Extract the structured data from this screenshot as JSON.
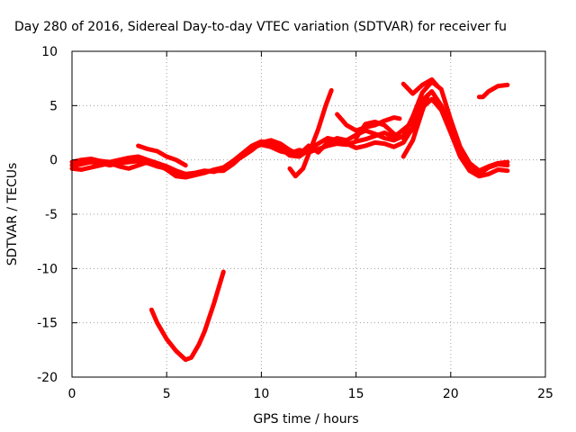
{
  "chart_data": {
    "type": "line",
    "title": "Day 280 of 2016, Sidereal Day-to-day VTEC variation (SDTVAR) for receiver fu",
    "xlabel": "GPS time / hours",
    "ylabel": "SDTVAR / TECUs",
    "xlim": [
      0,
      25
    ],
    "ylim": [
      -20,
      10
    ],
    "xticks": [
      "0",
      "5",
      "10",
      "15",
      "20",
      "25"
    ],
    "yticks": [
      "-20",
      "-15",
      "-10",
      "-5",
      "0",
      "5",
      "10"
    ],
    "grid": true,
    "legend": "none",
    "color": "#ff0000",
    "series": [
      {
        "points": [
          [
            0,
            -0.5
          ],
          [
            0.5,
            -0.4
          ],
          [
            1,
            -0.2
          ],
          [
            1.5,
            -0.3
          ],
          [
            2,
            -0.5
          ],
          [
            2.5,
            -0.3
          ],
          [
            3,
            -0.2
          ],
          [
            3.5,
            -0.1
          ],
          [
            4,
            -0.3
          ],
          [
            4.5,
            -0.6
          ],
          [
            5,
            -0.8
          ],
          [
            5.5,
            -1.2
          ],
          [
            6,
            -1.4
          ],
          [
            6.5,
            -1.3
          ],
          [
            7,
            -1.1
          ],
          [
            7.5,
            -1.0
          ],
          [
            8,
            -1.0
          ],
          [
            8.5,
            -0.4
          ],
          [
            9,
            0.4
          ],
          [
            9.5,
            1.1
          ],
          [
            10,
            1.4
          ],
          [
            10.5,
            1.2
          ],
          [
            11,
            0.8
          ],
          [
            11.5,
            0.6
          ],
          [
            12,
            0.9
          ],
          [
            12.5,
            0.7
          ],
          [
            13,
            1.0
          ],
          [
            13.5,
            1.3
          ],
          [
            14,
            1.5
          ],
          [
            14.5,
            1.4
          ],
          [
            15,
            1.7
          ],
          [
            15.5,
            1.9
          ],
          [
            16,
            2.2
          ],
          [
            16.5,
            2.5
          ],
          [
            17,
            2.1
          ],
          [
            17.5,
            2.8
          ],
          [
            18,
            3.5
          ],
          [
            18.5,
            4.8
          ],
          [
            19,
            5.6
          ],
          [
            19.5,
            4.6
          ],
          [
            20,
            2.5
          ],
          [
            20.5,
            0.3
          ],
          [
            21,
            -1.0
          ],
          [
            21.5,
            -1.5
          ],
          [
            22,
            -1.3
          ],
          [
            22.5,
            -0.9
          ],
          [
            23,
            -1.0
          ]
        ]
      },
      {
        "points": [
          [
            0,
            -0.8
          ],
          [
            0.5,
            -0.9
          ],
          [
            1,
            -0.7
          ],
          [
            1.5,
            -0.5
          ],
          [
            2,
            -0.3
          ],
          [
            2.5,
            -0.6
          ],
          [
            3,
            -0.8
          ],
          [
            3.5,
            -0.5
          ],
          [
            4,
            -0.2
          ],
          [
            4.5,
            -0.4
          ],
          [
            5,
            -0.9
          ],
          [
            5.5,
            -1.5
          ],
          [
            6,
            -1.6
          ],
          [
            6.5,
            -1.4
          ],
          [
            7,
            -1.2
          ],
          [
            7.5,
            -0.9
          ],
          [
            8,
            -0.7
          ],
          [
            8.5,
            -0.1
          ],
          [
            9,
            0.6
          ],
          [
            9.5,
            1.3
          ],
          [
            10,
            1.7
          ],
          [
            10.5,
            1.5
          ],
          [
            11,
            1.1
          ],
          [
            11.5,
            0.4
          ],
          [
            12,
            0.3
          ],
          [
            12.5,
            0.9
          ],
          [
            13,
            1.5
          ],
          [
            13.5,
            2.0
          ],
          [
            14,
            1.8
          ],
          [
            14.5,
            1.5
          ],
          [
            15,
            1.1
          ],
          [
            15.5,
            1.3
          ],
          [
            16,
            1.6
          ],
          [
            16.5,
            1.5
          ],
          [
            17,
            1.2
          ],
          [
            17.5,
            1.6
          ],
          [
            18,
            3.0
          ],
          [
            18.5,
            5.5
          ],
          [
            19,
            6.3
          ],
          [
            19.5,
            5.0
          ],
          [
            20,
            3.0
          ],
          [
            20.5,
            0.8
          ],
          [
            21,
            -0.4
          ],
          [
            21.5,
            -1.3
          ],
          [
            22,
            -0.7
          ],
          [
            22.5,
            -0.4
          ],
          [
            23,
            -0.5
          ]
        ]
      },
      {
        "points": [
          [
            0,
            -0.2
          ],
          [
            0.5,
            0.0
          ],
          [
            1,
            0.1
          ],
          [
            1.5,
            -0.1
          ],
          [
            2,
            -0.2
          ],
          [
            2.5,
            0.0
          ],
          [
            3,
            0.2
          ],
          [
            3.5,
            0.3
          ],
          [
            4,
            0.0
          ],
          [
            4.5,
            -0.3
          ],
          [
            5,
            -0.6
          ],
          [
            5.5,
            -1.0
          ],
          [
            6,
            -1.3
          ],
          [
            6.5,
            -1.2
          ],
          [
            7,
            -1.0
          ],
          [
            7.5,
            -1.1
          ],
          [
            8,
            -0.8
          ],
          [
            8.5,
            -0.2
          ],
          [
            9,
            0.3
          ],
          [
            9.5,
            0.9
          ],
          [
            10,
            1.6
          ],
          [
            10.5,
            1.8
          ],
          [
            11,
            1.5
          ],
          [
            11.5,
            0.9
          ],
          [
            12,
            0.5
          ],
          [
            12.5,
            1.3
          ],
          [
            13,
            0.7
          ],
          [
            13.5,
            1.6
          ],
          [
            14,
            2.0
          ],
          [
            14.5,
            1.8
          ],
          [
            15,
            2.3
          ],
          [
            15.5,
            2.7
          ],
          [
            16,
            2.4
          ],
          [
            16.5,
            2.0
          ],
          [
            17,
            1.8
          ],
          [
            17.5,
            2.2
          ],
          [
            18,
            4.0
          ],
          [
            18.5,
            6.2
          ],
          [
            19,
            7.2
          ],
          [
            19.5,
            6.5
          ],
          [
            20,
            3.7
          ],
          [
            20.5,
            1.2
          ],
          [
            21,
            -0.3
          ],
          [
            21.5,
            -1.0
          ],
          [
            22,
            -0.6
          ],
          [
            22.5,
            -0.3
          ],
          [
            23,
            -0.2
          ]
        ]
      },
      {
        "points": [
          [
            3.5,
            1.3
          ],
          [
            4,
            1.0
          ],
          [
            4.5,
            0.8
          ],
          [
            5,
            0.3
          ],
          [
            5.5,
            0.0
          ],
          [
            6,
            -0.5
          ]
        ]
      },
      {
        "points": [
          [
            11.5,
            -0.8
          ],
          [
            11.8,
            -1.5
          ],
          [
            12.2,
            -0.8
          ],
          [
            12.6,
            1.0
          ],
          [
            13,
            2.8
          ],
          [
            13.4,
            5.0
          ],
          [
            13.7,
            6.4
          ]
        ]
      },
      {
        "points": [
          [
            14,
            4.2
          ],
          [
            14.5,
            3.2
          ],
          [
            15,
            2.7
          ],
          [
            15.5,
            3.0
          ],
          [
            16,
            3.2
          ],
          [
            16.5,
            3.6
          ],
          [
            17,
            3.9
          ],
          [
            17.3,
            3.8
          ]
        ]
      },
      {
        "points": [
          [
            15,
            2.0
          ],
          [
            15.5,
            3.3
          ],
          [
            16,
            3.5
          ],
          [
            16.5,
            3.2
          ],
          [
            17,
            2.4
          ],
          [
            17.5,
            2.0
          ],
          [
            18,
            2.8
          ]
        ]
      },
      {
        "points": [
          [
            17.5,
            0.3
          ],
          [
            18,
            1.8
          ],
          [
            18.5,
            4.5
          ],
          [
            18.8,
            6.0
          ]
        ]
      },
      {
        "points": [
          [
            17.5,
            7.0
          ],
          [
            18,
            6.1
          ],
          [
            18.5,
            6.9
          ],
          [
            19,
            7.4
          ],
          [
            19.3,
            6.8
          ]
        ]
      },
      {
        "points": [
          [
            21.5,
            5.8
          ],
          [
            21.7,
            5.8
          ],
          [
            22,
            6.3
          ],
          [
            22.5,
            6.8
          ],
          [
            23,
            6.9
          ]
        ]
      },
      {
        "points": [
          [
            4.2,
            -13.8
          ],
          [
            4.5,
            -15.0
          ],
          [
            5,
            -16.5
          ],
          [
            5.5,
            -17.6
          ],
          [
            6,
            -18.4
          ],
          [
            6.3,
            -18.2
          ],
          [
            6.7,
            -17.0
          ],
          [
            7,
            -15.8
          ],
          [
            7.5,
            -13.2
          ],
          [
            8,
            -10.3
          ]
        ]
      }
    ]
  }
}
